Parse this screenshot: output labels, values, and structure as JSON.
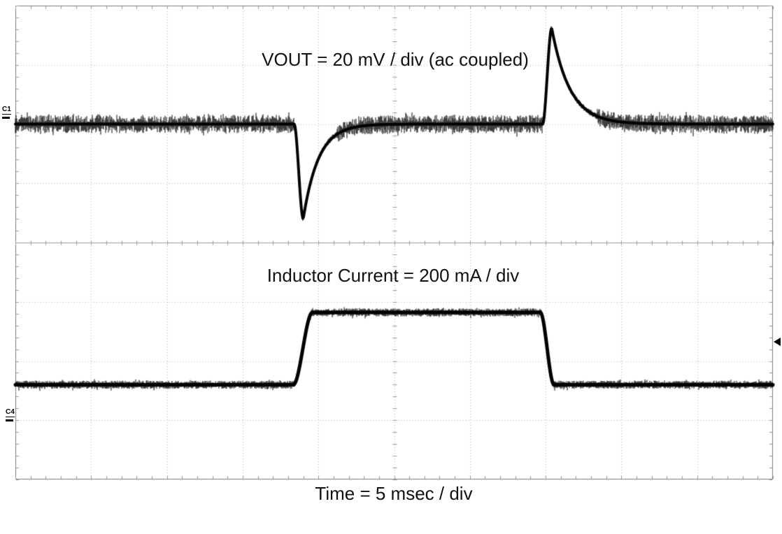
{
  "chart_data": {
    "type": "line",
    "xlabel": "Time = 5 msec / div",
    "x_divisions": 10,
    "y_divisions": 8,
    "time_per_div_msec": 5,
    "grid": true,
    "colors": {
      "background": "#ffffff",
      "grid_dots": "#b3b3b3",
      "axis": "#9a9a9a",
      "border": "#7d7d7d",
      "trace": "#000000",
      "text": "#111111"
    },
    "series": [
      {
        "name": "VOUT",
        "channel": "C1",
        "annotation": "VOUT = 20 mV / div (ac coupled)",
        "scale_per_div": "20 mV",
        "coupling": "ac coupled",
        "baseline_div_from_top": 2.0,
        "noise_halfwidth_div": 0.13,
        "undershoot": {
          "time_div": 3.68,
          "fall_width_div": 0.12,
          "depth_div": 1.6,
          "depth_mv": 32,
          "recovery_tau_div": 0.2
        },
        "overshoot": {
          "time_div": 6.96,
          "rise_width_div": 0.12,
          "height_div": 1.62,
          "height_mv": 32,
          "recovery_tau_div": 0.24
        }
      },
      {
        "name": "Inductor Current",
        "channel": "C4",
        "annotation": "Inductor Current = 200 mA / div",
        "scale_per_div": "200 mA",
        "low_level_div_from_top": 6.4,
        "high_level_div_from_top": 5.18,
        "step_up_time_div": 3.67,
        "step_down_time_div": 6.93,
        "step_rise_width_div": 0.25,
        "step_fall_width_div": 0.18,
        "step_amplitude_ma": 244,
        "load_pulse_width_msec": 16.3,
        "noise_halfwidth_div": 0.045
      }
    ],
    "trigger_marker": {
      "position_div_from_top": 5.68,
      "icon": "left-pointing-triangle",
      "side": "right"
    }
  }
}
